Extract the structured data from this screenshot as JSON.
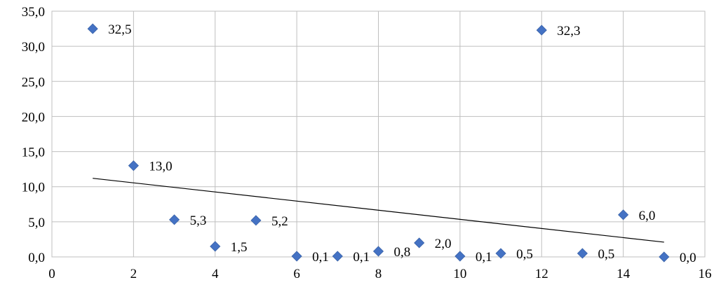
{
  "chart_data": {
    "type": "scatter",
    "title": "",
    "xlabel": "",
    "ylabel": "",
    "xlim": [
      0,
      16
    ],
    "ylim": [
      0,
      35
    ],
    "x_ticks": [
      0,
      2,
      4,
      6,
      8,
      10,
      12,
      14,
      16
    ],
    "y_ticks": [
      0,
      5,
      10,
      15,
      20,
      25,
      30,
      35
    ],
    "y_tick_labels": [
      "0,0",
      "5,0",
      "10,0",
      "15,0",
      "20,0",
      "25,0",
      "30,0",
      "35,0"
    ],
    "grid": true,
    "series": [
      {
        "marker": "diamond",
        "color": "#4472C4",
        "x": [
          1,
          2,
          3,
          4,
          5,
          6,
          7,
          8,
          9,
          10,
          11,
          12,
          13,
          14,
          15
        ],
        "y": [
          32.5,
          13.0,
          5.3,
          1.5,
          5.2,
          0.1,
          0.1,
          0.8,
          2.0,
          0.1,
          0.5,
          32.3,
          0.5,
          6.0,
          0.0
        ],
        "labels": [
          "32,5",
          "13,0",
          "5,3",
          "1,5",
          "5,2",
          "0,1",
          "0,1",
          "0,8",
          "2,0",
          "0,1",
          "0,5",
          "32,3",
          "0,5",
          "6,0",
          "0,0"
        ]
      }
    ],
    "trendline": {
      "type": "linear",
      "color": "#000000",
      "x": [
        1,
        15
      ],
      "y": [
        11.2,
        2.1
      ]
    }
  }
}
